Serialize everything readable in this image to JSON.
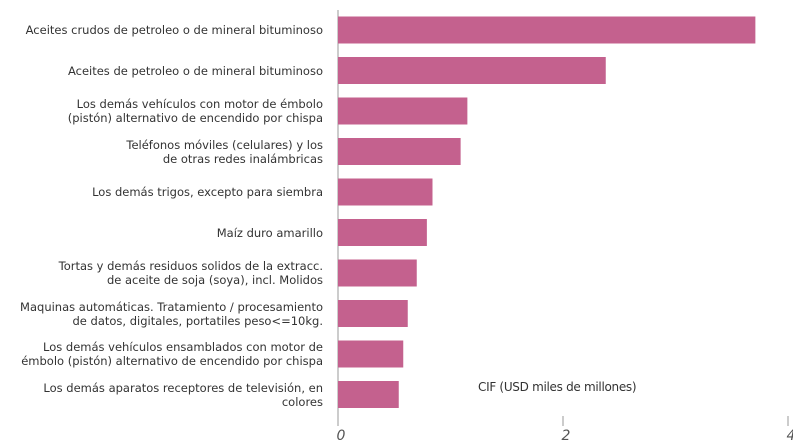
{
  "chart_data": {
    "type": "barh",
    "categories": [
      "Aceites crudos de petroleo o de mineral bituminoso",
      "Aceites de petroleo o de mineral bituminoso",
      "Los demás vehículos con motor de émbolo\n(pistón) alternativo de encendido por chispa",
      "Teléfonos móviles (celulares) y los\nde otras redes inalámbricas",
      "Los demás trigos, excepto para siembra",
      "Maíz duro amarillo",
      "Tortas y demás residuos solidos de la extracc.\nde aceite de soja (soya), incl. Molidos",
      "Maquinas automáticas. Tratamiento / procesamiento\nde datos, digitales, portatiles peso<=10kg.",
      "Los demás vehículos ensamblados con motor de\némbolo (pistón) alternativo de encendido por chispa",
      "Los demás aparatos receptores de televisión, en colores"
    ],
    "values": [
      3.71,
      2.38,
      1.15,
      1.09,
      0.84,
      0.79,
      0.7,
      0.62,
      0.58,
      0.54
    ],
    "color": "#c4618e",
    "xlim": [
      0,
      4
    ],
    "xticks": [
      0,
      2,
      4
    ],
    "annotation": "CIF (USD miles de millones)"
  }
}
